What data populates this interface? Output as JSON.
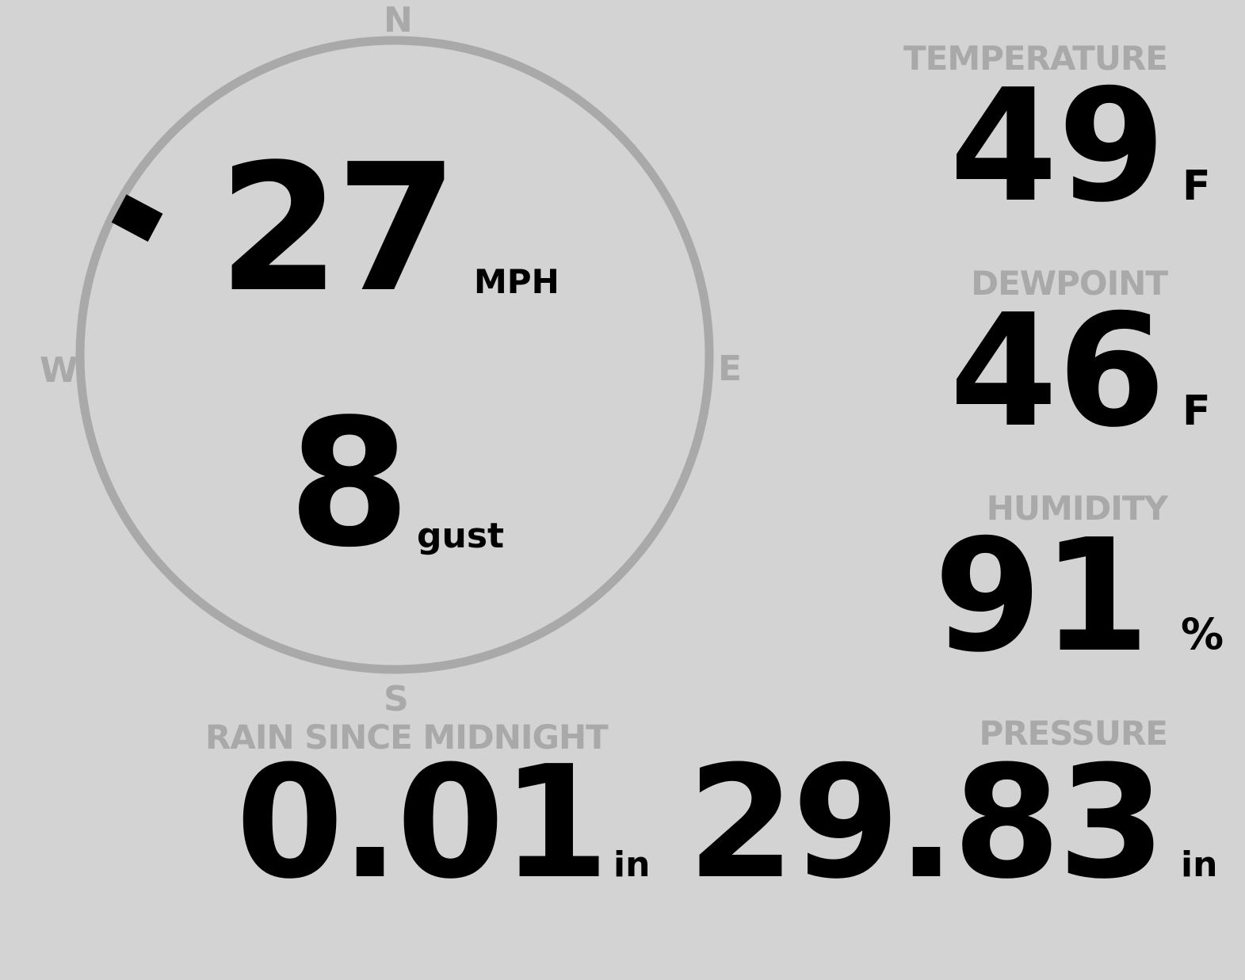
{
  "wind": {
    "speed": "27",
    "speed_unit": "MPH",
    "gust": "8",
    "gust_unit": "gust",
    "direction_deg": 298,
    "cardinals": {
      "n": "N",
      "e": "E",
      "s": "S",
      "w": "W"
    }
  },
  "temperature": {
    "label": "TEMPERATURE",
    "value": "49",
    "unit": "F"
  },
  "dewpoint": {
    "label": "DEWPOINT",
    "value": "46",
    "unit": "F"
  },
  "humidity": {
    "label": "HUMIDITY",
    "value": "91",
    "unit": "%"
  },
  "rain": {
    "label": "RAIN SINCE MIDNIGHT",
    "value": "0.01",
    "unit": "in"
  },
  "pressure": {
    "label": "PRESSURE",
    "value": "29.83",
    "unit": "in"
  },
  "colors": {
    "background": "#d3d3d3",
    "ring": "#a9a9a9",
    "text": "#000000"
  }
}
